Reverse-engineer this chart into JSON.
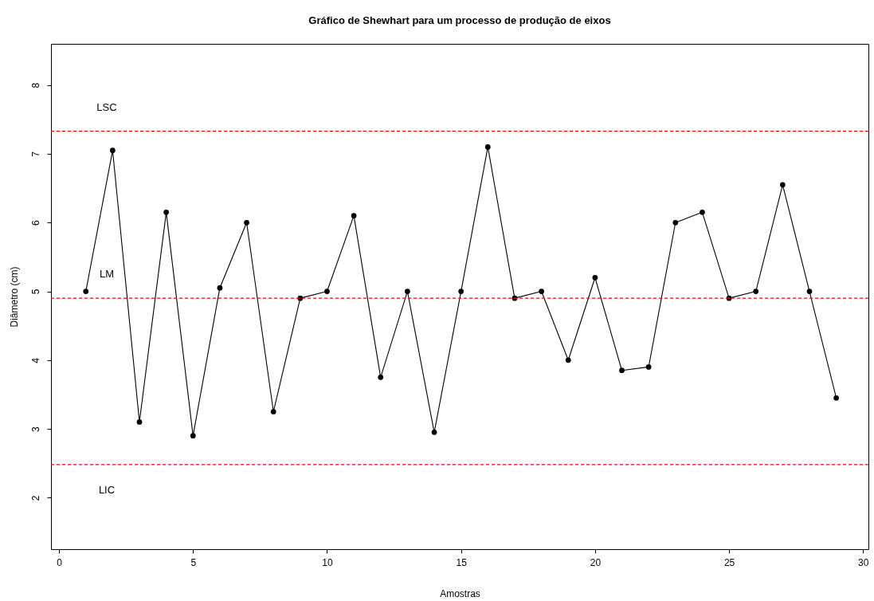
{
  "chart_data": {
    "type": "line",
    "title": "Gráfico de Shewhart para um processo de produção de eixos",
    "xlabel": "Amostras",
    "ylabel": "Diâmetro (cm)",
    "x": [
      1,
      2,
      3,
      4,
      5,
      6,
      7,
      8,
      9,
      10,
      11,
      12,
      13,
      14,
      15,
      16,
      17,
      18,
      19,
      20,
      21,
      22,
      23,
      24,
      25,
      26,
      27,
      28,
      29
    ],
    "series": [
      {
        "color": "#000000",
        "values": [
          5.0,
          7.05,
          3.1,
          6.15,
          2.9,
          5.05,
          6.0,
          3.25,
          4.9,
          5.0,
          6.1,
          3.75,
          5.0,
          2.95,
          5.0,
          7.1,
          4.9,
          5.0,
          4.0,
          5.2,
          3.85,
          3.9,
          6.0,
          6.15,
          4.9,
          5.0,
          6.55,
          5.0,
          3.45
        ]
      }
    ],
    "marker": "circle",
    "line_style": "solid",
    "grid": false,
    "xlim": [
      -0.3,
      30.2
    ],
    "ylim": [
      1.25,
      8.6
    ],
    "xticks": [
      0,
      5,
      10,
      15,
      20,
      25,
      30
    ],
    "yticks": [
      2,
      3,
      4,
      5,
      6,
      7,
      8
    ],
    "ref_lines": [
      {
        "axis": "y",
        "value": 7.33,
        "label": "LSC",
        "color": "#ff0000",
        "line_style": "dashed"
      },
      {
        "axis": "y",
        "value": 4.9,
        "label": "LM",
        "color": "#ff0000",
        "line_style": "dashed"
      },
      {
        "axis": "y",
        "value": 2.48,
        "label": "LIC",
        "color": "#ff0000",
        "line_style": "dashed"
      }
    ]
  }
}
